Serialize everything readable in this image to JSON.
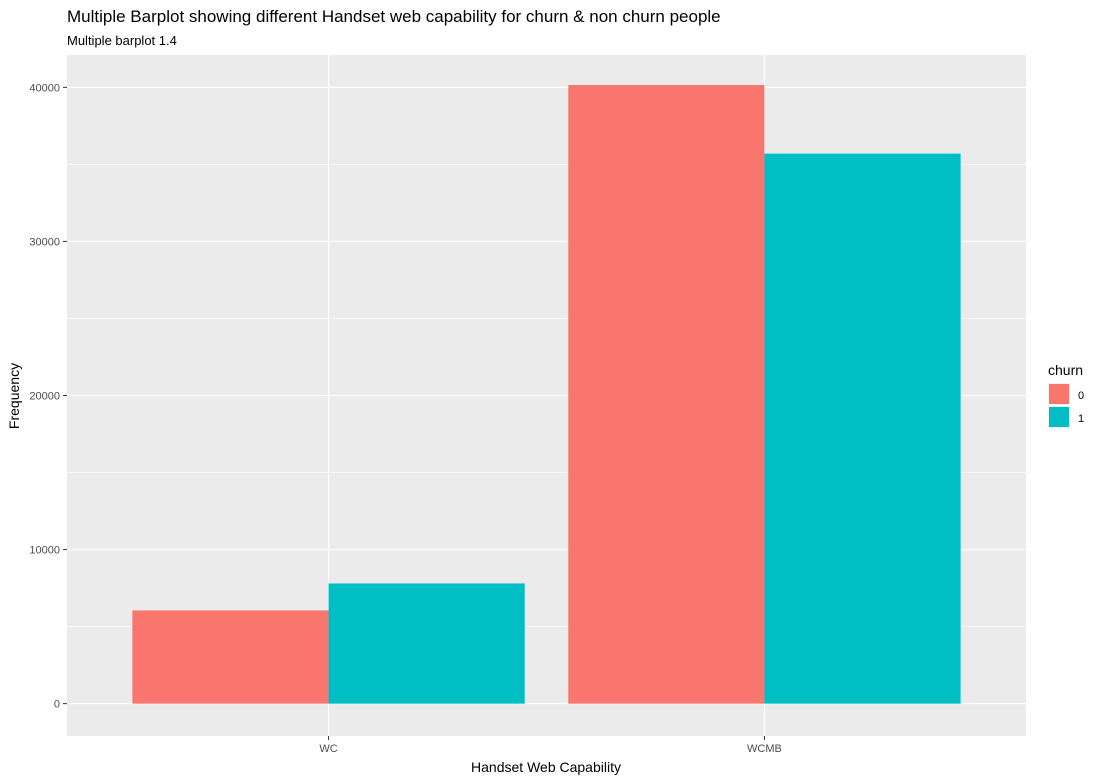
{
  "chart_data": {
    "type": "bar",
    "title": "Multiple Barplot showing different Handset web capability for churn & non churn people",
    "subtitle": "Multiple barplot 1.4",
    "xlabel": "Handset Web Capability",
    "ylabel": "Frequency",
    "categories": [
      "WC",
      "WCMB"
    ],
    "series": [
      {
        "name": "0",
        "values": [
          6050,
          40150
        ],
        "color": "#F8766D"
      },
      {
        "name": "1",
        "values": [
          7800,
          35700
        ],
        "color": "#00BFC4"
      }
    ],
    "yticks": [
      0,
      10000,
      20000,
      30000,
      40000
    ],
    "ytick_labels": [
      "0",
      "10000",
      "20000",
      "30000",
      "40000"
    ],
    "ylim": [
      -2100,
      42100
    ],
    "legend": {
      "title": "churn",
      "position": "right"
    },
    "grid": true,
    "panel_background": "#EBEBEB"
  }
}
